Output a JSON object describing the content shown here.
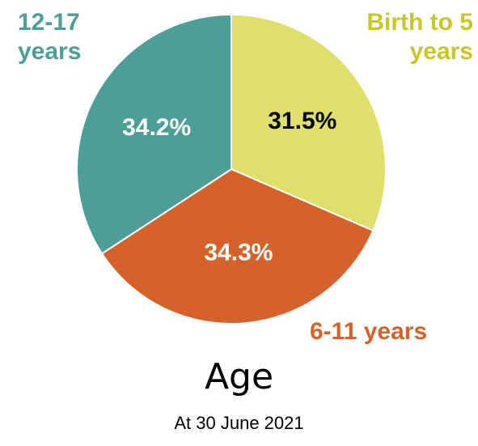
{
  "chart_data": {
    "type": "pie",
    "title": "Age",
    "subtitle": "At 30 June 2021",
    "categories": [
      "Birth to 5 years",
      "6-11 years",
      "12-17 years"
    ],
    "values": [
      31.5,
      34.3,
      34.2
    ],
    "value_labels": [
      "31.5%",
      "34.3%",
      "34.2%"
    ],
    "colors": [
      "#dfe06c",
      "#d4622a",
      "#4e9e98"
    ]
  }
}
